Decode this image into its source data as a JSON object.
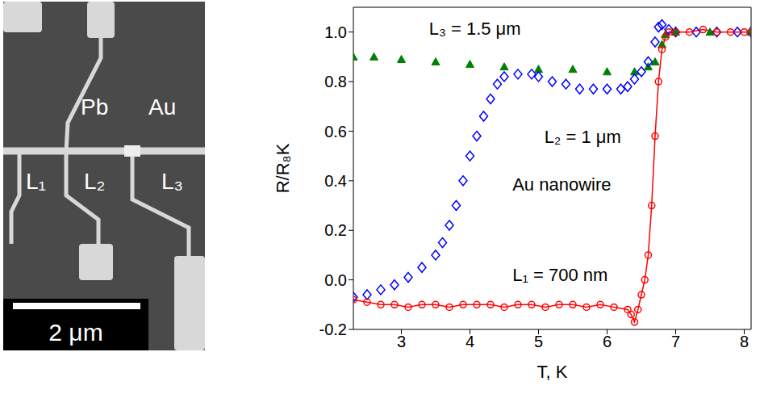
{
  "micrograph": {
    "contact_label": "Pb",
    "wire_label": "Au",
    "segment_labels": [
      "L₁",
      "L₂",
      "L₃"
    ],
    "scale_bar": "2 μm"
  },
  "chart_data": {
    "type": "line",
    "x_label": "T, K",
    "y_label": "R/R₈K",
    "annotation": "Au nanowire",
    "xlim": [
      2.3,
      8.1
    ],
    "xticks": [
      3,
      4,
      5,
      6,
      7,
      8
    ],
    "ylim": [
      -0.2,
      1.1
    ],
    "yticks": [
      -0.2,
      {
        "value": 0,
        "label": "0.0"
      },
      0.2,
      0.4,
      0.6,
      0.8,
      {
        "value": 1,
        "label": "1.0"
      }
    ],
    "series": [
      {
        "name": "L₃ = 1.5 μm",
        "color": "#008000",
        "marker": "triangle",
        "line_style": "none",
        "x": [
          2.3,
          2.6,
          3.0,
          3.5,
          4.0,
          4.5,
          5.0,
          5.5,
          6.0,
          6.4,
          6.6,
          6.7,
          6.8,
          6.85,
          7.0,
          7.5,
          8.1
        ],
        "values": [
          0.9,
          0.9,
          0.89,
          0.88,
          0.87,
          0.86,
          0.85,
          0.85,
          0.84,
          0.84,
          0.86,
          0.88,
          0.95,
          0.99,
          1.0,
          1.0,
          1.0
        ]
      },
      {
        "name": "L₂ = 1 μm",
        "color": "#0000ff",
        "marker": "diamond",
        "line_style": "none",
        "x": [
          2.3,
          2.5,
          2.7,
          2.9,
          3.1,
          3.3,
          3.5,
          3.6,
          3.7,
          3.8,
          3.9,
          4.0,
          4.1,
          4.2,
          4.3,
          4.4,
          4.5,
          4.7,
          4.9,
          5.0,
          5.2,
          5.4,
          5.6,
          5.8,
          6.0,
          6.2,
          6.3,
          6.4,
          6.5,
          6.6,
          6.7,
          6.75,
          6.8,
          6.9,
          7.0,
          7.3,
          7.6,
          7.9,
          8.1
        ],
        "values": [
          -0.07,
          -0.06,
          -0.04,
          -0.02,
          0.01,
          0.05,
          0.1,
          0.15,
          0.22,
          0.3,
          0.4,
          0.5,
          0.58,
          0.66,
          0.73,
          0.79,
          0.82,
          0.83,
          0.83,
          0.82,
          0.8,
          0.79,
          0.77,
          0.77,
          0.77,
          0.77,
          0.78,
          0.81,
          0.84,
          0.88,
          0.96,
          1.02,
          1.03,
          1.01,
          1.0,
          1.0,
          1.0,
          1.0,
          1.0
        ]
      },
      {
        "name": "L₁ = 700 nm",
        "color": "#ff0000",
        "marker": "circle",
        "line_style": "solid",
        "x": [
          2.3,
          2.5,
          2.7,
          2.9,
          3.1,
          3.3,
          3.5,
          3.7,
          3.9,
          4.1,
          4.3,
          4.5,
          4.7,
          4.9,
          5.1,
          5.3,
          5.5,
          5.7,
          5.9,
          6.1,
          6.3,
          6.35,
          6.4,
          6.45,
          6.5,
          6.55,
          6.6,
          6.65,
          6.7,
          6.75,
          6.8,
          6.85,
          6.9,
          7.0,
          7.2,
          7.4,
          7.6,
          7.8,
          8.0,
          8.1
        ],
        "values": [
          -0.08,
          -0.09,
          -0.1,
          -0.1,
          -0.11,
          -0.1,
          -0.1,
          -0.11,
          -0.1,
          -0.1,
          -0.1,
          -0.11,
          -0.1,
          -0.1,
          -0.11,
          -0.1,
          -0.1,
          -0.11,
          -0.1,
          -0.11,
          -0.12,
          -0.14,
          -0.17,
          -0.12,
          -0.06,
          0.0,
          0.1,
          0.3,
          0.58,
          0.8,
          0.93,
          0.98,
          1.0,
          1.0,
          1.0,
          1.01,
          1.0,
          1.0,
          1.0,
          1.0
        ]
      }
    ]
  }
}
